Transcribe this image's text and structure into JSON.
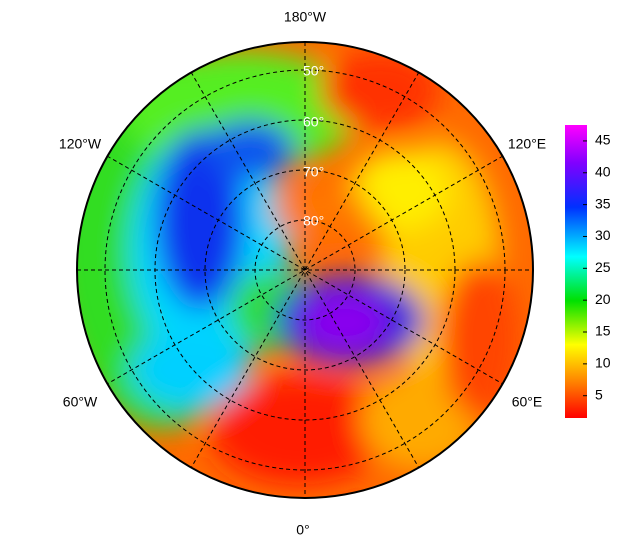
{
  "map": {
    "longitude_labels": [
      "180°W",
      "120°W",
      "120°E",
      "60°W",
      "60°E",
      "0°"
    ],
    "latitude_labels": [
      "50°",
      "60°",
      "70°",
      "80°"
    ]
  },
  "colorbar": {
    "range": [
      1.5,
      47.5
    ],
    "ticks": [
      5,
      10,
      15,
      20,
      25,
      30,
      35,
      40,
      45
    ]
  }
}
